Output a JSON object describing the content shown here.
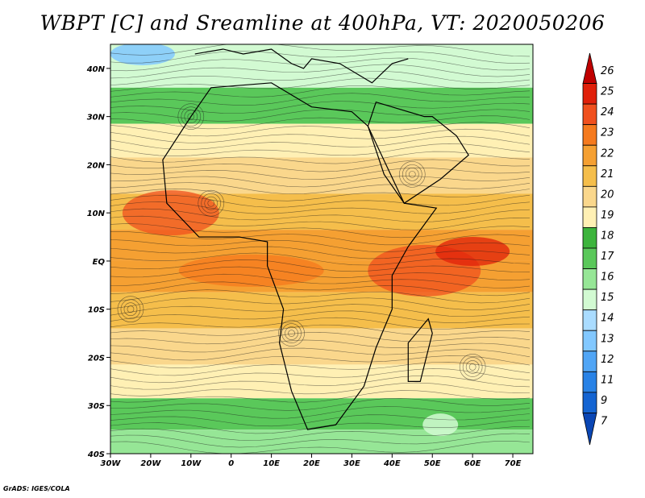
{
  "title": "WBPT [C] and Sreamline at 400hPa, VT: 2020050206",
  "credit": "GrADS: IGES/COLA",
  "map": {
    "lat_labels": [
      "40N",
      "30N",
      "20N",
      "10N",
      "EQ",
      "10S",
      "20S",
      "30S",
      "40S"
    ],
    "lon_labels": [
      "30W",
      "20W",
      "10W",
      "0",
      "10E",
      "20E",
      "30E",
      "40E",
      "50E",
      "60E",
      "70E"
    ],
    "extent": {
      "lon": [
        -30,
        75
      ],
      "lat": [
        -40,
        45
      ]
    },
    "field_zones": [
      {
        "lat_center": 40,
        "temp": 15
      },
      {
        "lat_center": 32,
        "temp": 17
      },
      {
        "lat_center": 25,
        "temp": 19
      },
      {
        "lat_center": 18,
        "temp": 20
      },
      {
        "lat_center": 10,
        "temp": 21
      },
      {
        "lat_center": 3,
        "temp": 22
      },
      {
        "lat_center": -3,
        "temp": 22
      },
      {
        "lat_center": -10,
        "temp": 21
      },
      {
        "lat_center": -18,
        "temp": 20
      },
      {
        "lat_center": -25,
        "temp": 19
      },
      {
        "lat_center": -32,
        "temp": 17
      },
      {
        "lat_center": -38,
        "temp": 16
      }
    ]
  },
  "colorbar": {
    "labels": [
      "26",
      "25",
      "24",
      "23",
      "22",
      "21",
      "20",
      "19",
      "18",
      "17",
      "16",
      "15",
      "14",
      "13",
      "12",
      "11",
      "9",
      "7"
    ],
    "colors": [
      "#c00000",
      "#e0200a",
      "#f0501e",
      "#f57a1e",
      "#f5a032",
      "#f5be4b",
      "#fad78c",
      "#fff0b4",
      "#3cb43c",
      "#5ac85a",
      "#96e696",
      "#d2fad2",
      "#aadcff",
      "#82c8ff",
      "#50a5f5",
      "#2882e6",
      "#1464d2",
      "#0a46b4"
    ]
  }
}
